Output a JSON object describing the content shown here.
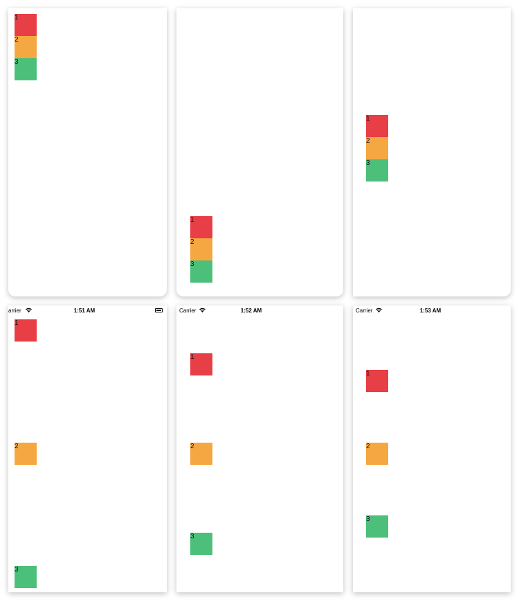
{
  "colors": {
    "red": "#E83E46",
    "orange": "#F5A841",
    "green": "#4CC07A"
  },
  "screens": [
    {
      "boxes": [
        {
          "label": "1",
          "color": "red"
        },
        {
          "label": "2",
          "color": "orange"
        },
        {
          "label": "3",
          "color": "green"
        }
      ]
    },
    {
      "boxes": [
        {
          "label": "1",
          "color": "red"
        },
        {
          "label": "2",
          "color": "orange"
        },
        {
          "label": "3",
          "color": "green"
        }
      ]
    },
    {
      "boxes": [
        {
          "label": "1",
          "color": "red"
        },
        {
          "label": "2",
          "color": "orange"
        },
        {
          "label": "3",
          "color": "green"
        }
      ]
    },
    {
      "status": {
        "carrier": "arrier",
        "time": "1:51 AM"
      },
      "boxes": [
        {
          "label": "1",
          "color": "red"
        },
        {
          "label": "2",
          "color": "orange"
        },
        {
          "label": "3",
          "color": "green"
        }
      ]
    },
    {
      "status": {
        "carrier": "Carrier",
        "time": "1:52 AM"
      },
      "boxes": [
        {
          "label": "1",
          "color": "red"
        },
        {
          "label": "2",
          "color": "orange"
        },
        {
          "label": "3",
          "color": "green"
        }
      ]
    },
    {
      "status": {
        "carrier": "Carrier",
        "time": "1:53 AM"
      },
      "boxes": [
        {
          "label": "1",
          "color": "red"
        },
        {
          "label": "2",
          "color": "orange"
        },
        {
          "label": "3",
          "color": "green"
        }
      ]
    }
  ]
}
